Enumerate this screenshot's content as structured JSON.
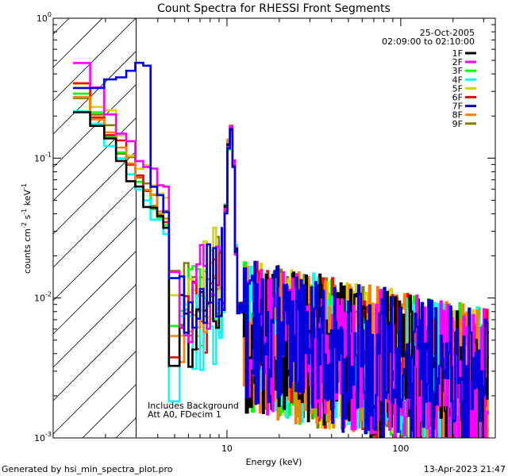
{
  "chart_data": {
    "type": "line",
    "title": "Count Spectra for RHESSI Front Segments",
    "xlabel": "Energy (keV)",
    "ylabel_parts": [
      "counts cm",
      "-2",
      " s",
      "-1",
      " keV",
      "-1"
    ],
    "xscale": "log",
    "yscale": "log",
    "xlim": [
      1,
      350
    ],
    "ylim": [
      0.001,
      1
    ],
    "x_ticks": [
      {
        "value": 10,
        "label": "10"
      },
      {
        "value": 100,
        "label": "100"
      }
    ],
    "y_ticks": [
      {
        "value": 1,
        "base": "10",
        "exp": "0"
      },
      {
        "value": 0.1,
        "base": "10",
        "exp": "-1"
      },
      {
        "value": 0.01,
        "base": "10",
        "exp": "-2"
      },
      {
        "value": 0.001,
        "base": "10",
        "exp": "-3"
      }
    ],
    "date": "25-Oct-2005",
    "time_range": "02:09:00 to 02:10:00",
    "annotation_lines": [
      "Includes Background",
      "Att A0, FDecim 1"
    ],
    "footer_left": "Generated by hsi_min_spectra_plot.pro",
    "footer_right": "13-Apr-2023 21:47",
    "shaded_region_keV": [
      1,
      3
    ],
    "series": [
      {
        "name": "1F",
        "color": "#000000",
        "seed": 11,
        "scale": 0.85,
        "dip": 0.55
      },
      {
        "name": "2F",
        "color": "#ff00ff",
        "seed": 22,
        "scale": 1.55,
        "dip": 1.0
      },
      {
        "name": "3F",
        "color": "#00ff00",
        "seed": 33,
        "scale": 1.0,
        "dip": 0.8
      },
      {
        "name": "4F",
        "color": "#00ffff",
        "seed": 44,
        "scale": 0.8,
        "dip": 0.45
      },
      {
        "name": "5F",
        "color": "#d4d400",
        "seed": 55,
        "scale": 1.35,
        "dip": 1.0
      },
      {
        "name": "6F",
        "color": "#ff0000",
        "seed": 66,
        "scale": 1.1,
        "dip": 0.7
      },
      {
        "name": "7F",
        "color": "#0000dd",
        "seed": 77,
        "scale": 1.2,
        "dip": 1.0,
        "special": "low_start"
      },
      {
        "name": "8F",
        "color": "#ff8000",
        "seed": 88,
        "scale": 1.0,
        "dip": 0.75
      },
      {
        "name": "9F",
        "color": "#808000",
        "seed": 99,
        "scale": 1.05,
        "dip": 0.85
      }
    ]
  }
}
